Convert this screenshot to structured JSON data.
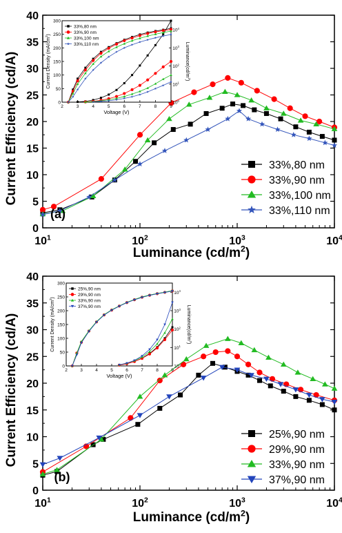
{
  "chart_data": [
    {
      "id": "a",
      "type": "line",
      "panel_label": "(a)",
      "xlabel": "Luminance (cd/m",
      "xlabel_sup": "2",
      "xlabel_close": ")",
      "ylabel": "Current Efficiency (cd/A)",
      "x_scale": "log",
      "xlim": [
        10,
        10000
      ],
      "ylim": [
        0,
        40
      ],
      "x_ticks": [
        {
          "base": "10",
          "exp": "1"
        },
        {
          "base": "10",
          "exp": "2"
        },
        {
          "base": "10",
          "exp": "3"
        },
        {
          "base": "10",
          "exp": "4"
        }
      ],
      "y_ticks": [
        "0",
        "5",
        "10",
        "15",
        "20",
        "25",
        "30",
        "35",
        "40"
      ],
      "legend_position": "lower-right",
      "series": [
        {
          "name": "33%,80 nm",
          "color": "#000000",
          "marker": "square",
          "x": [
            10,
            15,
            32,
            55,
            90,
            140,
            220,
            330,
            480,
            700,
            900,
            1150,
            1500,
            2000,
            2800,
            4000,
            5500,
            7500,
            10000
          ],
          "y": [
            2.8,
            3.4,
            5.8,
            9.0,
            12.5,
            16.0,
            18.5,
            19.5,
            21.5,
            22.5,
            23.3,
            23.0,
            22.2,
            21.5,
            20.5,
            19.0,
            18.0,
            17.2,
            16.5
          ]
        },
        {
          "name": "33%,90 nm",
          "color": "#ff0000",
          "marker": "circle",
          "x": [
            10,
            13,
            40,
            100,
            210,
            360,
            560,
            800,
            1100,
            1600,
            2400,
            3500,
            5000,
            7000,
            10000
          ],
          "y": [
            3.4,
            4.0,
            9.2,
            17.5,
            23.5,
            25.5,
            27.0,
            28.2,
            27.3,
            25.8,
            24.2,
            22.5,
            21.0,
            20.0,
            18.9
          ]
        },
        {
          "name": "33%,100 nm",
          "color": "#22bb22",
          "marker": "triangle-up",
          "x": [
            10,
            16,
            33,
            70,
            120,
            200,
            320,
            520,
            750,
            1000,
            1400,
            2000,
            3000,
            4500,
            6500,
            10000
          ],
          "y": [
            2.6,
            3.2,
            6.0,
            11.0,
            16.5,
            20.5,
            23.2,
            24.5,
            25.6,
            25.0,
            24.0,
            22.5,
            21.5,
            20.2,
            19.5,
            18.6
          ]
        },
        {
          "name": "33%,110 nm",
          "color": "#3355bb",
          "marker": "star",
          "x": [
            10,
            15,
            30,
            55,
            100,
            180,
            300,
            500,
            800,
            1050,
            1300,
            1800,
            2600,
            3800,
            5500,
            8000,
            10000
          ],
          "y": [
            2.5,
            3.2,
            5.8,
            9.0,
            12.0,
            14.5,
            16.5,
            18.5,
            20.5,
            22.0,
            20.5,
            19.5,
            18.5,
            17.5,
            16.8,
            16.0,
            15.5
          ]
        }
      ],
      "inset": {
        "xlabel": "Voltage (V)",
        "ylabel_left": "Current Density (mA/cm",
        "ylabel_left_sup": "2",
        "ylabel_left_close": ")",
        "ylabel_right": "Luminance(cd/m",
        "ylabel_right_sup": "2",
        "ylabel_right_close": ")",
        "xlim": [
          2,
          9
        ],
        "ylim_left": [
          0,
          300
        ],
        "ylim_right_log": [
          0,
          4.5
        ],
        "x_ticks": [
          "2",
          "3",
          "4",
          "5",
          "6",
          "7",
          "8",
          "9"
        ],
        "y_ticks_left": [
          "0",
          "50",
          "100",
          "150",
          "200",
          "250",
          "300"
        ],
        "y_ticks_right": [
          {
            "base": "10",
            "exp": "0"
          },
          {
            "base": "10",
            "exp": "1"
          },
          {
            "base": "10",
            "exp": "2"
          },
          {
            "base": "10",
            "exp": "3"
          },
          {
            "base": "10",
            "exp": "4"
          }
        ],
        "legend": [
          "33%,80  nm",
          "33%,90  nm",
          "33%,100 nm",
          "33%,110 nm"
        ],
        "current_density": [
          {
            "x": [
              3.0,
              3.5,
              4.0,
              4.5,
              5.0,
              5.5,
              6.0,
              6.5,
              7.0,
              7.5,
              8.0,
              8.5,
              9.0
            ],
            "y": [
              1,
              3,
              8,
              16,
              28,
              45,
              70,
              100,
              135,
              172,
              210,
              250,
              300
            ]
          },
          {
            "x": [
              3.5,
              4.0,
              4.5,
              5.0,
              5.5,
              6.0,
              6.5,
              7.0,
              7.5,
              8.0,
              8.5,
              9.0
            ],
            "y": [
              1,
              3,
              7,
              13,
              21,
              32,
              46,
              62,
              82,
              106,
              130,
              150
            ]
          },
          {
            "x": [
              3.5,
              4.0,
              4.5,
              5.0,
              5.5,
              6.0,
              6.5,
              7.0,
              7.5,
              8.0,
              8.5,
              9.0
            ],
            "y": [
              0.5,
              2,
              5,
              9,
              14,
              21,
              30,
              40,
              52,
              68,
              85,
              100
            ]
          },
          {
            "x": [
              4.0,
              4.5,
              5.0,
              5.5,
              6.0,
              6.5,
              7.0,
              7.5,
              8.0,
              8.5,
              9.0
            ],
            "y": [
              1,
              3,
              5,
              9,
              14,
              20,
              28,
              38,
              50,
              62,
              75
            ]
          }
        ],
        "luminance": [
          {
            "x": [
              2.4,
              2.7,
              3.0,
              3.5,
              4.0,
              4.5,
              5.0,
              5.5,
              6.0,
              6.5,
              7.0,
              7.5,
              8.0,
              8.5,
              9.0
            ],
            "y": [
              1,
              5,
              20,
              80,
              250,
              600,
              1100,
              1800,
              2800,
              4000,
              5500,
              7000,
              8500,
              10000,
              12000
            ]
          },
          {
            "x": [
              2.4,
              2.7,
              3.0,
              3.5,
              4.0,
              4.5,
              5.0,
              5.5,
              6.0,
              6.5,
              7.0,
              7.5,
              8.0,
              8.5,
              9.0
            ],
            "y": [
              1,
              4,
              15,
              60,
              200,
              500,
              950,
              1600,
              2500,
              3500,
              4800,
              6200,
              7600,
              9000,
              10500
            ]
          },
          {
            "x": [
              2.4,
              2.7,
              3.0,
              3.5,
              4.0,
              4.5,
              5.0,
              5.5,
              6.0,
              6.5,
              7.0,
              7.5,
              8.0,
              8.5,
              9.0
            ],
            "y": [
              1,
              3,
              10,
              40,
              130,
              330,
              650,
              1100,
              1700,
              2500,
              3400,
              4500,
              5700,
              7000,
              8500
            ]
          },
          {
            "x": [
              2.4,
              2.7,
              3.0,
              3.5,
              4.0,
              4.5,
              5.0,
              5.5,
              6.0,
              6.5,
              7.0,
              7.5,
              8.0,
              8.5,
              9.0
            ],
            "y": [
              1,
              2,
              5,
              20,
              60,
              150,
              320,
              600,
              1000,
              1500,
              2100,
              2800,
              3600,
              4500,
              5500
            ]
          }
        ]
      }
    },
    {
      "id": "b",
      "type": "line",
      "panel_label": "(b)",
      "xlabel": "Luminance (cd/m",
      "xlabel_sup": "2",
      "xlabel_close": ")",
      "ylabel": "Current Efficiency (cd/A)",
      "x_scale": "log",
      "xlim": [
        10,
        10000
      ],
      "ylim": [
        0,
        40
      ],
      "x_ticks": [
        {
          "base": "10",
          "exp": "1"
        },
        {
          "base": "10",
          "exp": "2"
        },
        {
          "base": "10",
          "exp": "3"
        },
        {
          "base": "10",
          "exp": "4"
        }
      ],
      "y_ticks": [
        "0",
        "5",
        "10",
        "15",
        "20",
        "25",
        "30",
        "35",
        "40"
      ],
      "legend_position": "lower-right",
      "series": [
        {
          "name": "25%,90 nm",
          "color": "#000000",
          "marker": "square",
          "x": [
            10,
            14,
            33,
            42,
            95,
            160,
            260,
            400,
            560,
            750,
            1000,
            1300,
            1700,
            2200,
            3000,
            4000,
            5500,
            7500,
            10000
          ],
          "y": [
            2.8,
            3.5,
            8.5,
            9.5,
            12.3,
            15.3,
            17.8,
            21.5,
            23.7,
            23.0,
            22.2,
            21.5,
            20.5,
            19.5,
            18.5,
            17.5,
            16.8,
            16.0,
            15.0
          ]
        },
        {
          "name": "29%,90 nm",
          "color": "#ff0000",
          "marker": "circle",
          "x": [
            10,
            28,
            80,
            160,
            280,
            450,
            600,
            800,
            1000,
            1300,
            1700,
            2300,
            3200,
            4500,
            6500,
            10000
          ],
          "y": [
            3.4,
            8.2,
            13.5,
            20.5,
            23.5,
            25.0,
            25.8,
            26.0,
            25.0,
            23.5,
            22.0,
            20.8,
            19.8,
            18.8,
            17.8,
            16.8
          ]
        },
        {
          "name": "33%,90 nm",
          "color": "#22bb22",
          "marker": "triangle-up",
          "x": [
            10,
            14,
            40,
            100,
            180,
            300,
            480,
            800,
            1100,
            1500,
            2100,
            3000,
            4200,
            6000,
            8000,
            10000
          ],
          "y": [
            3.0,
            3.8,
            9.5,
            17.5,
            21.5,
            24.5,
            27.0,
            28.3,
            27.5,
            26.2,
            24.8,
            23.5,
            22.0,
            20.8,
            19.8,
            19.0
          ]
        },
        {
          "name": "37%,90 nm",
          "color": "#2244bb",
          "marker": "triangle-down",
          "x": [
            10,
            15,
            38,
            100,
            200,
            450,
            700,
            1000,
            1400,
            2000,
            2800,
            4000,
            5500,
            7500,
            10000
          ],
          "y": [
            4.8,
            6.0,
            9.8,
            14.0,
            17.5,
            21.0,
            23.0,
            22.5,
            21.5,
            20.8,
            19.8,
            18.8,
            17.8,
            17.0,
            16.5
          ]
        }
      ],
      "inset": {
        "xlabel": "Voltage (V)",
        "ylabel_left": "Current Density (mA/cm",
        "ylabel_left_sup": "2",
        "ylabel_left_close": ")",
        "ylabel_right": "Luminance(cd/m",
        "ylabel_right_sup": "2",
        "ylabel_right_close": ")",
        "xlim": [
          2,
          9
        ],
        "ylim_left": [
          0,
          300
        ],
        "ylim_right_log": [
          0,
          4.5
        ],
        "x_ticks": [
          "2",
          "3",
          "4",
          "5",
          "6",
          "7",
          "8",
          "9"
        ],
        "y_ticks_left": [
          "0",
          "50",
          "100",
          "150",
          "200",
          "250",
          "300"
        ],
        "y_ticks_right": [
          {
            "base": "10",
            "exp": "0"
          },
          {
            "base": "10",
            "exp": "1"
          },
          {
            "base": "10",
            "exp": "2"
          },
          {
            "base": "10",
            "exp": "3"
          },
          {
            "base": "10",
            "exp": "4"
          }
        ],
        "legend": [
          "25%,90  nm",
          "29%,90  nm",
          "33%,90  nm",
          "37%,90  nm"
        ],
        "current_density": [
          {
            "x": [
              5.5,
              6.0,
              6.5,
              7.0,
              7.5,
              8.0,
              8.5,
              9.0
            ],
            "y": [
              3,
              8,
              16,
              28,
              45,
              68,
              100,
              140
            ]
          },
          {
            "x": [
              5.5,
              6.0,
              6.5,
              7.0,
              7.5,
              8.0,
              8.5,
              9.0
            ],
            "y": [
              3,
              8,
              16,
              27,
              43,
              65,
              95,
              130
            ]
          },
          {
            "x": [
              5.5,
              6.0,
              6.5,
              7.0,
              7.5,
              8.0,
              8.5,
              9.0
            ],
            "y": [
              4,
              10,
              19,
              32,
              52,
              80,
              120,
              170
            ]
          },
          {
            "x": [
              5.5,
              6.0,
              6.5,
              7.0,
              7.5,
              8.0,
              8.5,
              9.0
            ],
            "y": [
              4,
              10,
              20,
              36,
              60,
              95,
              150,
              230
            ]
          }
        ],
        "luminance": [
          {
            "x": [
              2.4,
              2.7,
              3.0,
              3.5,
              4.0,
              4.5,
              5.0,
              5.5,
              6.0,
              6.5,
              7.0,
              7.5,
              8.0,
              8.5,
              9.0
            ],
            "y": [
              1,
              5,
              20,
              80,
              250,
              600,
              1100,
              1800,
              2800,
              4000,
              5500,
              7000,
              8500,
              10000,
              12000
            ]
          },
          {
            "x": [
              2.4,
              2.7,
              3.0,
              3.5,
              4.0,
              4.5,
              5.0,
              5.5,
              6.0,
              6.5,
              7.0,
              7.5,
              8.0,
              8.5,
              9.0
            ],
            "y": [
              1,
              5,
              19,
              78,
              245,
              590,
              1080,
              1780,
              2750,
              3950,
              5400,
              6900,
              8400,
              9900,
              11800
            ]
          },
          {
            "x": [
              2.4,
              2.7,
              3.0,
              3.5,
              4.0,
              4.5,
              5.0,
              5.5,
              6.0,
              6.5,
              7.0,
              7.5,
              8.0,
              8.5,
              9.0
            ],
            "y": [
              1,
              5,
              21,
              82,
              255,
              610,
              1120,
              1820,
              2850,
              4050,
              5600,
              7100,
              8600,
              10200,
              12300
            ]
          },
          {
            "x": [
              2.4,
              2.7,
              3.0,
              3.5,
              4.0,
              4.5,
              5.0,
              5.5,
              6.0,
              6.5,
              7.0,
              7.5,
              8.0,
              8.5,
              9.0
            ],
            "y": [
              1,
              4,
              18,
              75,
              240,
              580,
              1060,
              1760,
              2720,
              3900,
              5300,
              6800,
              8300,
              9800,
              11600
            ]
          }
        ]
      }
    }
  ]
}
